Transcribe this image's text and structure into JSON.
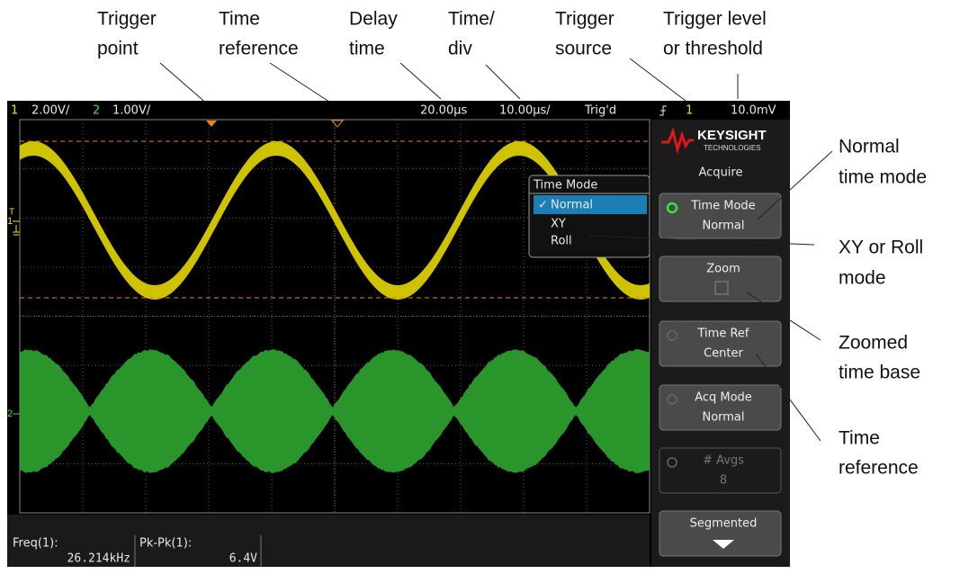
{
  "callouts": {
    "top": [
      [
        "Trigger",
        "point"
      ],
      [
        "Time",
        "reference"
      ],
      [
        "Delay",
        "time"
      ],
      [
        "Time/",
        "div"
      ],
      [
        "Trigger",
        "source"
      ],
      [
        "Trigger level",
        "or threshold"
      ]
    ],
    "right": [
      [
        "Normal",
        "time mode"
      ],
      [
        "XY or Roll",
        "mode"
      ],
      [
        "Zoomed",
        "time base"
      ],
      [
        "Time",
        "reference"
      ]
    ]
  },
  "status": {
    "ch1": "1",
    "ch1_scale": "2.00V/",
    "ch2": "2",
    "ch2_scale": "1.00V/",
    "delay": "20.00µs",
    "timebase": "10.00µs/",
    "state": "Trig'd",
    "trigger_source": "1",
    "trigger_level": "10.0mV"
  },
  "channel_markers": {
    "ch1": "1",
    "trigger": "T",
    "ch2": "2"
  },
  "menu": {
    "title": "Time Mode",
    "options": [
      "Normal",
      "XY",
      "Roll"
    ]
  },
  "softkeys": {
    "brand": "KEYSIGHT",
    "brand_sub": "TECHNOLOGIES",
    "menu_title": "Acquire",
    "keys": [
      [
        "Time Mode",
        "Normal"
      ],
      [
        "Zoom"
      ],
      [
        "Time Ref",
        "Center"
      ],
      [
        "Acq Mode",
        "Normal"
      ],
      [
        "# Avgs",
        "8"
      ],
      [
        "Segmented"
      ]
    ]
  },
  "measurements": [
    [
      "Freq(1):",
      "26.214kHz"
    ],
    [
      "Pk-Pk(1):",
      "6.4V"
    ]
  ]
}
